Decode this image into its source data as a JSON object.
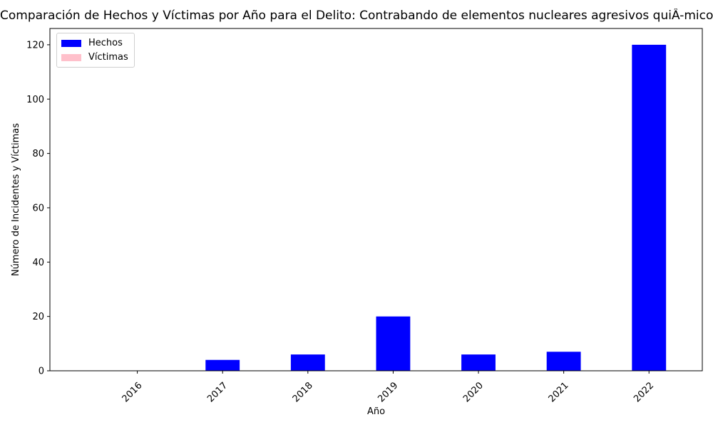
{
  "chart_data": {
    "type": "bar",
    "title": "Comparación de Hechos y Víctimas por Año para el Delito: Contrabando de elementos nucleares agresivos quiÂ-micos armas y",
    "xlabel": "Año",
    "ylabel": "Número de Incidentes y Víctimas",
    "categories": [
      "2016",
      "2017",
      "2018",
      "2019",
      "2020",
      "2021",
      "2022"
    ],
    "series": [
      {
        "name": "Hechos",
        "values": [
          0,
          4,
          6,
          20,
          6,
          7,
          120
        ],
        "color": "#0000ff"
      },
      {
        "name": "Víctimas",
        "values": [
          0,
          0,
          0,
          0,
          0,
          0,
          0
        ],
        "color": "#ffc0cb"
      }
    ],
    "ylim": [
      0,
      126
    ],
    "yticks": [
      0,
      20,
      40,
      60,
      80,
      100,
      120
    ],
    "grid": false,
    "legend_position": "top-left"
  }
}
